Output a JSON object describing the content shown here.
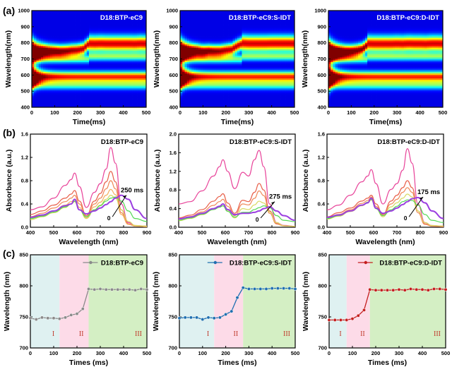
{
  "figure": {
    "panel_labels": [
      "(a)",
      "(b)",
      "(c)"
    ]
  },
  "chart_data": [
    {
      "type": "heatmap",
      "panel": "a",
      "title": "D18:BTP-eC9",
      "xlabel": "Time(ms)",
      "ylabel": "Wavelength(nm)",
      "xlim": [
        0,
        500
      ],
      "ylim": [
        400,
        1000
      ],
      "xticks": [
        0,
        100,
        200,
        300,
        400,
        500
      ],
      "yticks": [
        400,
        500,
        600,
        700,
        800,
        900,
        1000
      ],
      "colormap": "jet",
      "transition_ms": 250
    },
    {
      "type": "heatmap",
      "panel": "a",
      "title": "D18:BTP-eC9:S-IDT",
      "xlabel": "Time(ms)",
      "ylabel": "Wavelength(nm)",
      "xlim": [
        0,
        500
      ],
      "ylim": [
        400,
        1000
      ],
      "xticks": [
        0,
        100,
        200,
        300,
        400,
        500
      ],
      "yticks": [
        400,
        500,
        600,
        700,
        800,
        900,
        1000
      ],
      "colormap": "jet",
      "transition_ms": 275
    },
    {
      "type": "heatmap",
      "panel": "a",
      "title": "D18:BTP-eC9:D-IDT",
      "xlabel": "Time(ms)",
      "ylabel": "Wavelength(nm)",
      "xlim": [
        0,
        500
      ],
      "ylim": [
        400,
        1000
      ],
      "xticks": [
        0,
        100,
        200,
        300,
        400,
        500
      ],
      "yticks": [
        400,
        500,
        600,
        700,
        800,
        900,
        1000
      ],
      "colormap": "jet",
      "transition_ms": 175
    },
    {
      "type": "line",
      "panel": "b",
      "title": "D18:BTP-eC9",
      "xlabel": "Wavelength (nm)",
      "ylabel": "Absorbance (a.u.)",
      "xlim": [
        400,
        900
      ],
      "ylim": [
        0,
        1.6
      ],
      "xticks": [
        400,
        500,
        600,
        700,
        800,
        900
      ],
      "yticks": [
        0.0,
        0.4,
        0.8,
        1.2,
        1.6
      ],
      "x": [
        400,
        450,
        500,
        550,
        575,
        590,
        610,
        640,
        675,
        700,
        725,
        745,
        765,
        790,
        820,
        850,
        900
      ],
      "series": [
        {
          "color": "#e8449a",
          "values": [
            0.3,
            0.35,
            0.5,
            0.72,
            0.82,
            0.93,
            0.7,
            0.34,
            0.6,
            0.75,
            1.0,
            1.37,
            1.1,
            0.4,
            0.08,
            0.03,
            0.02
          ]
        },
        {
          "color": "#e8604a",
          "values": [
            0.22,
            0.28,
            0.38,
            0.5,
            0.57,
            0.63,
            0.45,
            0.2,
            0.45,
            0.58,
            0.78,
            0.96,
            0.78,
            0.3,
            0.06,
            0.02,
            0.01
          ]
        },
        {
          "color": "#f08a5a",
          "values": [
            0.18,
            0.24,
            0.33,
            0.44,
            0.5,
            0.55,
            0.4,
            0.18,
            0.4,
            0.5,
            0.66,
            0.8,
            0.66,
            0.25,
            0.05,
            0.02,
            0.01
          ]
        },
        {
          "color": "#f5b060",
          "values": [
            0.15,
            0.2,
            0.28,
            0.38,
            0.44,
            0.48,
            0.34,
            0.16,
            0.35,
            0.43,
            0.55,
            0.65,
            0.56,
            0.22,
            0.05,
            0.02,
            0.01
          ]
        },
        {
          "color": "#d8d860",
          "values": [
            0.13,
            0.18,
            0.25,
            0.34,
            0.4,
            0.44,
            0.3,
            0.15,
            0.3,
            0.38,
            0.48,
            0.55,
            0.5,
            0.3,
            0.1,
            0.03,
            0.02
          ]
        },
        {
          "color": "#55d855",
          "values": [
            0.15,
            0.19,
            0.26,
            0.35,
            0.4,
            0.45,
            0.3,
            0.18,
            0.3,
            0.37,
            0.45,
            0.5,
            0.52,
            0.45,
            0.28,
            0.15,
            0.1
          ]
        },
        {
          "color": "#9b3fe0",
          "values": [
            0.17,
            0.21,
            0.28,
            0.37,
            0.4,
            0.48,
            0.3,
            0.23,
            0.28,
            0.33,
            0.39,
            0.44,
            0.5,
            0.55,
            0.48,
            0.3,
            0.15
          ]
        }
      ],
      "annotation": {
        "start_label": "0",
        "end_label": "250 ms",
        "from": [
          752,
          0.18
        ],
        "to": [
          812,
          0.55
        ]
      }
    },
    {
      "type": "line",
      "panel": "b",
      "title": "D18:BTP-eC9:S-IDT",
      "xlabel": "Wavelength (nm)",
      "ylabel": "Absorbance (a.u.)",
      "xlim": [
        400,
        900
      ],
      "ylim": [
        0,
        2.0
      ],
      "xticks": [
        400,
        500,
        600,
        700,
        800,
        900
      ],
      "yticks": [
        0.0,
        0.4,
        0.8,
        1.2,
        1.6,
        2.0
      ],
      "x": [
        400,
        450,
        500,
        550,
        575,
        590,
        610,
        640,
        675,
        700,
        725,
        745,
        765,
        790,
        820,
        850,
        900
      ],
      "series": [
        {
          "color": "#e8449a",
          "values": [
            0.5,
            0.55,
            0.78,
            1.1,
            1.3,
            1.45,
            1.2,
            0.83,
            1.18,
            1.1,
            1.45,
            1.65,
            1.3,
            0.5,
            0.1,
            0.04,
            0.02
          ]
        },
        {
          "color": "#e8604a",
          "values": [
            0.2,
            0.26,
            0.38,
            0.56,
            0.66,
            0.72,
            0.52,
            0.3,
            0.58,
            0.55,
            0.75,
            0.94,
            0.8,
            0.35,
            0.08,
            0.03,
            0.02
          ]
        },
        {
          "color": "#f08a5a",
          "values": [
            0.17,
            0.23,
            0.33,
            0.47,
            0.55,
            0.6,
            0.45,
            0.25,
            0.5,
            0.48,
            0.62,
            0.78,
            0.68,
            0.3,
            0.07,
            0.03,
            0.02
          ]
        },
        {
          "color": "#d8d860",
          "values": [
            0.14,
            0.19,
            0.27,
            0.38,
            0.44,
            0.46,
            0.35,
            0.2,
            0.4,
            0.38,
            0.48,
            0.56,
            0.52,
            0.33,
            0.1,
            0.03,
            0.02
          ]
        },
        {
          "color": "#55d855",
          "values": [
            0.15,
            0.2,
            0.28,
            0.38,
            0.43,
            0.46,
            0.34,
            0.22,
            0.32,
            0.32,
            0.38,
            0.42,
            0.46,
            0.42,
            0.25,
            0.15,
            0.12
          ]
        },
        {
          "color": "#9b3fe0",
          "values": [
            0.18,
            0.22,
            0.3,
            0.4,
            0.45,
            0.5,
            0.38,
            0.27,
            0.3,
            0.3,
            0.32,
            0.35,
            0.4,
            0.44,
            0.35,
            0.25,
            0.15
          ]
        }
      ],
      "annotation": {
        "start_label": "0",
        "end_label": "275 ms",
        "from": [
          752,
          0.2
        ],
        "to": [
          812,
          0.55
        ]
      }
    },
    {
      "type": "line",
      "panel": "b",
      "title": "D18:BTP-eC9:D-IDT",
      "xlabel": "Wavelength (nm)",
      "ylabel": "Absorbance (a.u.)",
      "xlim": [
        400,
        900
      ],
      "ylim": [
        0,
        1.6
      ],
      "xticks": [
        400,
        500,
        600,
        700,
        800,
        900
      ],
      "yticks": [
        0.0,
        0.4,
        0.8,
        1.2,
        1.6
      ],
      "x": [
        400,
        450,
        500,
        550,
        575,
        590,
        610,
        640,
        675,
        700,
        725,
        745,
        765,
        790,
        820,
        850,
        900
      ],
      "series": [
        {
          "color": "#e8449a",
          "values": [
            0.3,
            0.38,
            0.55,
            0.78,
            0.88,
            0.99,
            0.75,
            0.4,
            0.65,
            0.75,
            0.98,
            1.35,
            1.1,
            0.4,
            0.08,
            0.03,
            0.02
          ]
        },
        {
          "color": "#e8604a",
          "values": [
            0.18,
            0.25,
            0.33,
            0.45,
            0.5,
            0.55,
            0.4,
            0.22,
            0.45,
            0.55,
            0.68,
            0.8,
            0.68,
            0.28,
            0.06,
            0.02,
            0.01
          ]
        },
        {
          "color": "#f08a5a",
          "values": [
            0.16,
            0.22,
            0.3,
            0.41,
            0.46,
            0.52,
            0.36,
            0.2,
            0.4,
            0.48,
            0.6,
            0.68,
            0.6,
            0.25,
            0.05,
            0.02,
            0.01
          ]
        },
        {
          "color": "#d8d860",
          "values": [
            0.14,
            0.19,
            0.27,
            0.37,
            0.42,
            0.47,
            0.32,
            0.18,
            0.35,
            0.42,
            0.5,
            0.57,
            0.52,
            0.28,
            0.08,
            0.03,
            0.02
          ]
        },
        {
          "color": "#55d855",
          "values": [
            0.15,
            0.2,
            0.28,
            0.38,
            0.43,
            0.48,
            0.32,
            0.2,
            0.3,
            0.36,
            0.44,
            0.47,
            0.46,
            0.38,
            0.22,
            0.12,
            0.08
          ]
        },
        {
          "color": "#9b3fe0",
          "values": [
            0.17,
            0.21,
            0.28,
            0.38,
            0.42,
            0.5,
            0.33,
            0.24,
            0.28,
            0.33,
            0.39,
            0.44,
            0.49,
            0.51,
            0.42,
            0.28,
            0.15
          ]
        }
      ],
      "annotation": {
        "start_label": "0",
        "end_label": "175 ms",
        "from": [
          752,
          0.18
        ],
        "to": [
          812,
          0.52
        ]
      }
    },
    {
      "type": "line",
      "panel": "c",
      "legend": "D18:BTP-eC9",
      "legend_placement": "top-right",
      "color": "#8a8a8a",
      "xlabel": "Times (ms)",
      "ylabel": "Wavelength (nm)",
      "xlim": [
        0,
        500
      ],
      "ylim": [
        700,
        850
      ],
      "xticks": [
        0,
        100,
        200,
        300,
        400,
        500
      ],
      "yticks": [
        700,
        750,
        800,
        850
      ],
      "x": [
        0,
        25,
        50,
        75,
        100,
        125,
        150,
        175,
        200,
        225,
        250,
        275,
        300,
        325,
        350,
        375,
        400,
        425,
        450,
        475,
        500
      ],
      "values": [
        748,
        746,
        749,
        748,
        748,
        747,
        749,
        753,
        755,
        763,
        795,
        794,
        795,
        794,
        794,
        794,
        794,
        794,
        793,
        795,
        794
      ],
      "regions": [
        {
          "label": "I",
          "range": [
            0,
            125
          ],
          "color": "#dff1f1"
        },
        {
          "label": "II",
          "range": [
            125,
            250
          ],
          "color": "#fddbe8"
        },
        {
          "label": "III",
          "range": [
            250,
            500
          ],
          "color": "#d4efc4"
        }
      ]
    },
    {
      "type": "line",
      "panel": "c",
      "legend": "D18:BTP-eC9:S-IDT",
      "legend_placement": "top-right",
      "color": "#1f6fb0",
      "xlabel": "Times (ms)",
      "ylabel": "Wavelength (nm)",
      "xlim": [
        0,
        500
      ],
      "ylim": [
        700,
        850
      ],
      "xticks": [
        0,
        100,
        200,
        300,
        400,
        500
      ],
      "yticks": [
        700,
        750,
        800,
        850
      ],
      "x": [
        0,
        25,
        50,
        75,
        100,
        125,
        150,
        175,
        200,
        225,
        250,
        275,
        300,
        325,
        350,
        375,
        400,
        425,
        450,
        475,
        500
      ],
      "values": [
        748,
        749,
        749,
        749,
        746,
        749,
        748,
        749,
        754,
        759,
        781,
        797,
        795,
        795,
        795,
        795,
        796,
        796,
        796,
        796,
        795
      ],
      "regions": [
        {
          "label": "I",
          "range": [
            0,
            150
          ],
          "color": "#dff1f1"
        },
        {
          "label": "II",
          "range": [
            150,
            275
          ],
          "color": "#fddbe8"
        },
        {
          "label": "III",
          "range": [
            275,
            500
          ],
          "color": "#d4efc4"
        }
      ]
    },
    {
      "type": "line",
      "panel": "c",
      "legend": "D18:BTP-eC9:D-IDT",
      "legend_placement": "top-right",
      "color": "#c41e1e",
      "xlabel": "Times (ms)",
      "ylabel": "Wavelength (nm)",
      "xlim": [
        0,
        500
      ],
      "ylim": [
        700,
        850
      ],
      "xticks": [
        0,
        100,
        200,
        300,
        400,
        500
      ],
      "yticks": [
        700,
        750,
        800,
        850
      ],
      "x": [
        0,
        25,
        50,
        75,
        100,
        125,
        150,
        175,
        200,
        225,
        250,
        275,
        300,
        325,
        350,
        375,
        400,
        425,
        450,
        475,
        500
      ],
      "values": [
        745,
        745,
        745,
        745,
        747,
        752,
        761,
        794,
        793,
        793,
        793,
        793,
        794,
        793,
        795,
        794,
        794,
        793,
        795,
        795,
        794
      ],
      "regions": [
        {
          "label": "I",
          "range": [
            0,
            75
          ],
          "color": "#dff1f1"
        },
        {
          "label": "II",
          "range": [
            75,
            175
          ],
          "color": "#fddbe8"
        },
        {
          "label": "III",
          "range": [
            175,
            500
          ],
          "color": "#d4efc4"
        }
      ]
    }
  ]
}
